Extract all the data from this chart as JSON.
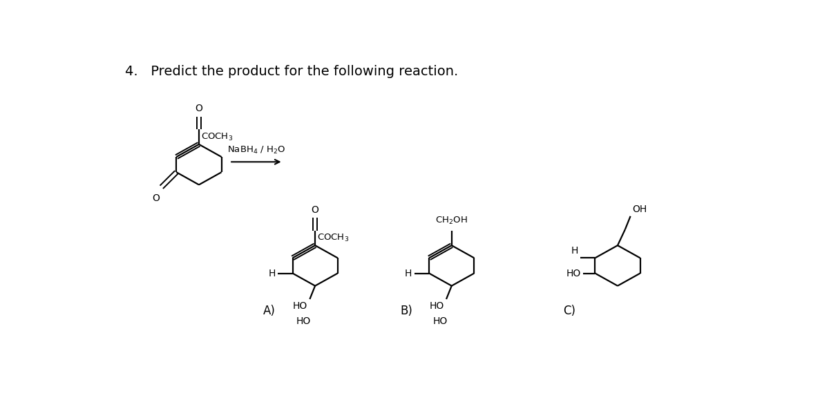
{
  "title": "4.   Predict the product for the following reaction.",
  "background_color": "#ffffff",
  "text_color": "#000000",
  "reagent_label": "NaBH$_4$ / H$_2$O",
  "label_A": "A)",
  "label_B": "B)",
  "label_C": "C)",
  "label_HO": "HO",
  "label_H": "H",
  "label_CH2OH": "CH$_2$OH",
  "label_OH": "OH",
  "label_COCH3": "COCH$_3$",
  "label_O": "O"
}
